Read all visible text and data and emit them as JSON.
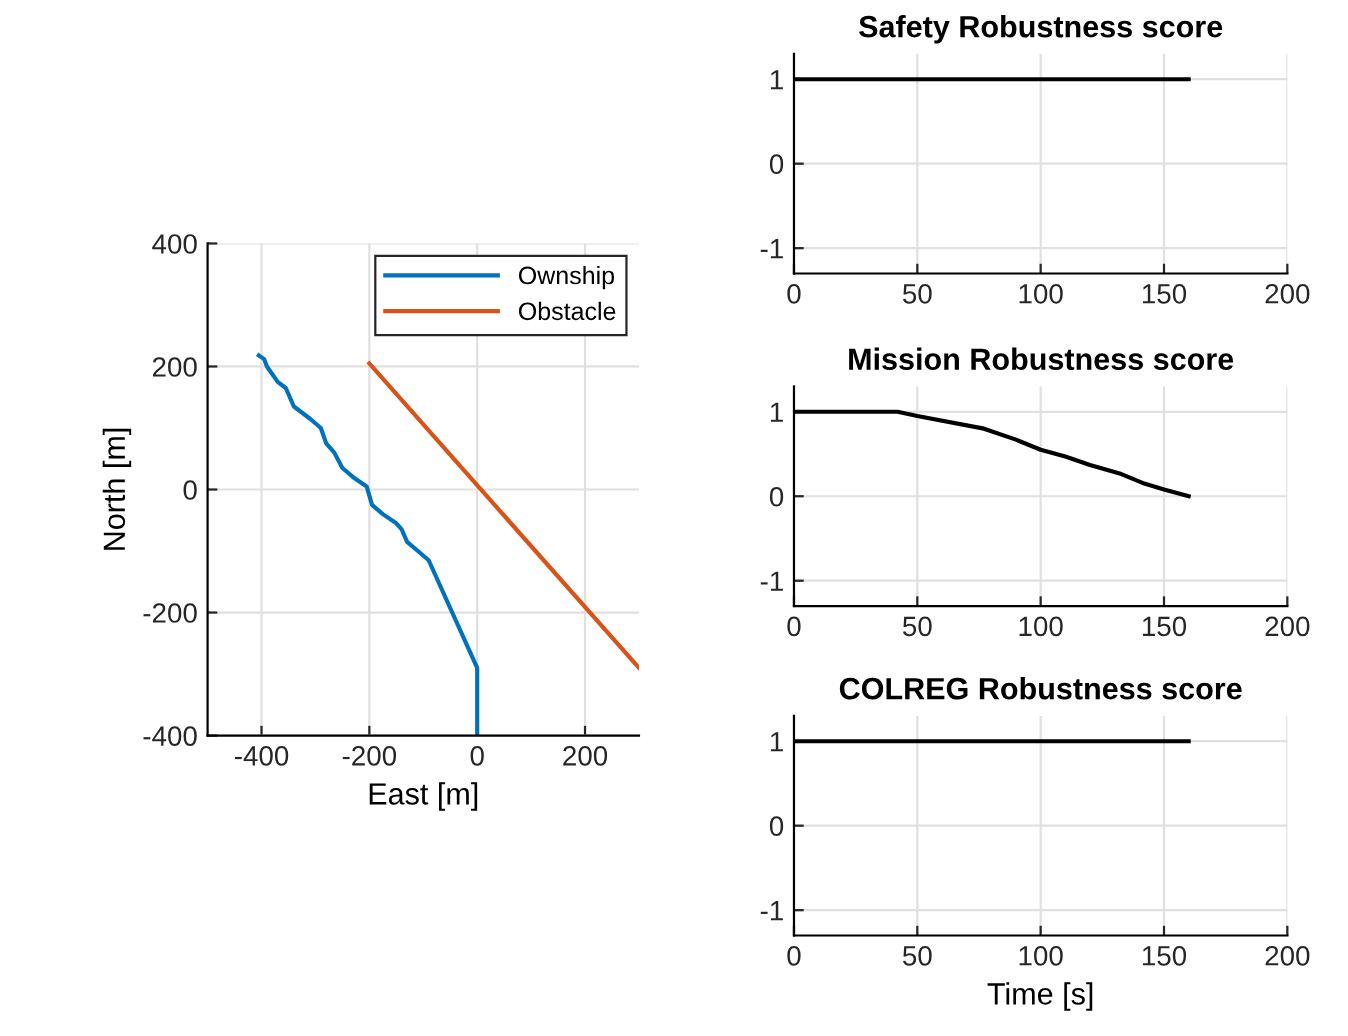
{
  "chart_data": [
    {
      "type": "line",
      "xlabel": "East [m]",
      "ylabel": "North [m]",
      "xlim": [
        -500,
        300
      ],
      "ylim": [
        -400,
        400
      ],
      "xticks": [
        -400,
        -200,
        0,
        200
      ],
      "yticks": [
        -400,
        -200,
        0,
        200,
        400
      ],
      "grid": true,
      "legend": "top right",
      "series": [
        {
          "name": "Ownship",
          "color": "#0072bd",
          "x": [
            0,
            0,
            -90,
            -110,
            -130,
            -140,
            -150,
            -175,
            -195,
            -205,
            -230,
            -250,
            -265,
            -280,
            -290,
            -310,
            -340,
            -355,
            -370,
            -390,
            -395,
            -405
          ],
          "values": [
            -400,
            -290,
            -115,
            -100,
            -85,
            -65,
            -55,
            -40,
            -25,
            5,
            20,
            35,
            60,
            75,
            100,
            115,
            135,
            165,
            175,
            200,
            212,
            218
          ]
        },
        {
          "name": "Obstacle",
          "color": "#d95319",
          "x": [
            300,
            -200
          ],
          "values": [
            -290,
            205
          ]
        }
      ]
    },
    {
      "type": "line",
      "title": "Safety Robustness score",
      "xlim": [
        0,
        200
      ],
      "ylim": [
        -1.3,
        1.3
      ],
      "xticks": [
        0,
        50,
        100,
        150,
        200
      ],
      "yticks": [
        -1,
        0,
        1
      ],
      "grid": true,
      "series": [
        {
          "color": "#000000",
          "x": [
            0,
            160
          ],
          "values": [
            1,
            1
          ]
        }
      ]
    },
    {
      "type": "line",
      "title": "Mission Robustness score",
      "xlim": [
        0,
        200
      ],
      "ylim": [
        -1.3,
        1.3
      ],
      "xticks": [
        0,
        50,
        100,
        150,
        200
      ],
      "yticks": [
        -1,
        0,
        1
      ],
      "grid": true,
      "series": [
        {
          "color": "#000000",
          "x": [
            0,
            42,
            50,
            77,
            90,
            100,
            110,
            120,
            132,
            142,
            150,
            160
          ],
          "values": [
            1,
            1,
            0.95,
            0.8,
            0.67,
            0.55,
            0.47,
            0.37,
            0.27,
            0.15,
            0.08,
            0
          ]
        }
      ]
    },
    {
      "type": "line",
      "title": "COLREG Robustness score",
      "xlabel": "Time [s]",
      "xlim": [
        0,
        200
      ],
      "ylim": [
        -1.3,
        1.3
      ],
      "xticks": [
        0,
        50,
        100,
        150,
        200
      ],
      "yticks": [
        -1,
        0,
        1
      ],
      "grid": true,
      "series": [
        {
          "color": "#000000",
          "x": [
            0,
            160
          ],
          "values": [
            1,
            1
          ]
        }
      ]
    }
  ]
}
